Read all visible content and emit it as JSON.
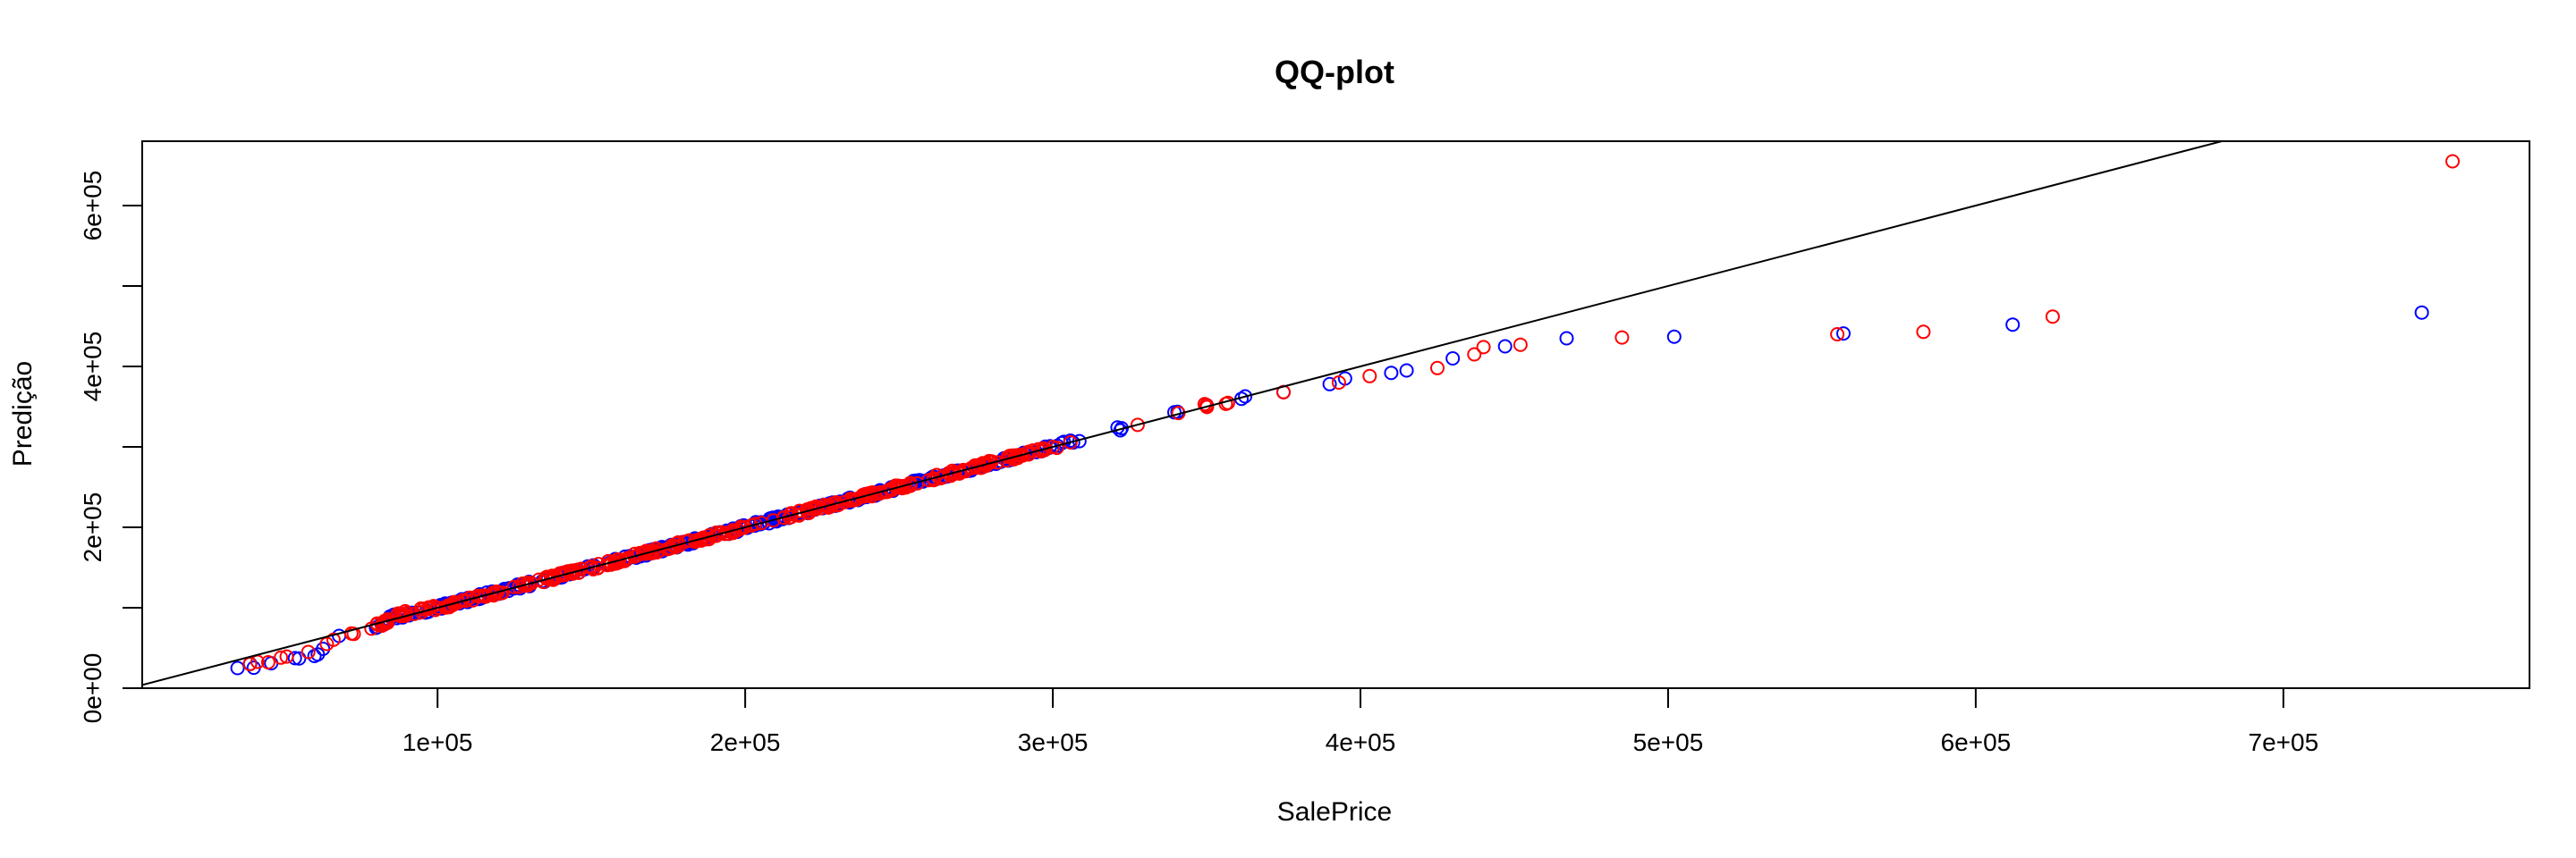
{
  "chart_data": {
    "type": "scatter",
    "title": "QQ-plot",
    "xlabel": "SalePrice",
    "ylabel": "Predição",
    "xlim": [
      4000,
      780000
    ],
    "ylim": [
      0,
      680000
    ],
    "x_ticks": [
      {
        "value": 100000,
        "label": "1e+05"
      },
      {
        "value": 200000,
        "label": "2e+05"
      },
      {
        "value": 300000,
        "label": "3e+05"
      },
      {
        "value": 400000,
        "label": "4e+05"
      },
      {
        "value": 500000,
        "label": "5e+05"
      },
      {
        "value": 600000,
        "label": "6e+05"
      },
      {
        "value": 700000,
        "label": "7e+05"
      }
    ],
    "y_ticks": [
      {
        "value": 0,
        "label": "0e+00",
        "labeled": true
      },
      {
        "value": 100000,
        "label": "",
        "labeled": false
      },
      {
        "value": 200000,
        "label": "2e+05",
        "labeled": true
      },
      {
        "value": 300000,
        "label": "",
        "labeled": false
      },
      {
        "value": 400000,
        "label": "4e+05",
        "labeled": true
      },
      {
        "value": 500000,
        "label": "",
        "labeled": false
      },
      {
        "value": 600000,
        "label": "6e+05",
        "labeled": true
      }
    ],
    "reference_line": {
      "slope": 1,
      "intercept": 0,
      "color": "#000000"
    },
    "grid": false,
    "series": [
      {
        "color": "#0000ff",
        "marker": "open-circle",
        "anchors": [
          [
            35000,
            25000
          ],
          [
            55000,
            37000
          ],
          [
            60000,
            40000
          ],
          [
            68000,
            65000
          ],
          [
            80000,
            75000
          ],
          [
            85000,
            88000
          ],
          [
            100000,
            100000
          ],
          [
            150000,
            150000
          ],
          [
            200000,
            200000
          ],
          [
            250000,
            250000
          ],
          [
            300000,
            300000
          ],
          [
            350000,
            352000
          ],
          [
            375000,
            368000
          ]
        ],
        "outliers": [
          [
            390000,
            378000
          ],
          [
            395000,
            385000
          ],
          [
            410000,
            392000
          ],
          [
            415000,
            395000
          ],
          [
            430000,
            410000
          ],
          [
            447000,
            425000
          ],
          [
            467000,
            435000
          ],
          [
            502000,
            437000
          ],
          [
            557000,
            441000
          ],
          [
            612000,
            452000
          ],
          [
            745000,
            467000
          ]
        ]
      },
      {
        "color": "#ff0000",
        "marker": "open-circle",
        "anchors": [
          [
            39000,
            30000
          ],
          [
            58000,
            45000
          ],
          [
            64000,
            55000
          ],
          [
            72000,
            68000
          ],
          [
            82000,
            80000
          ],
          [
            88000,
            92000
          ],
          [
            100000,
            100000
          ],
          [
            150000,
            150000
          ],
          [
            200000,
            200000
          ],
          [
            250000,
            250000
          ],
          [
            300000,
            300000
          ],
          [
            350000,
            352000
          ],
          [
            375000,
            368000
          ]
        ],
        "outliers": [
          [
            393000,
            380000
          ],
          [
            403000,
            388000
          ],
          [
            425000,
            398000
          ],
          [
            437000,
            415000
          ],
          [
            440000,
            424000
          ],
          [
            452000,
            427000
          ],
          [
            485000,
            436000
          ],
          [
            555000,
            440000
          ],
          [
            583000,
            443000
          ],
          [
            625000,
            462000
          ],
          [
            755000,
            655000
          ]
        ]
      }
    ]
  }
}
